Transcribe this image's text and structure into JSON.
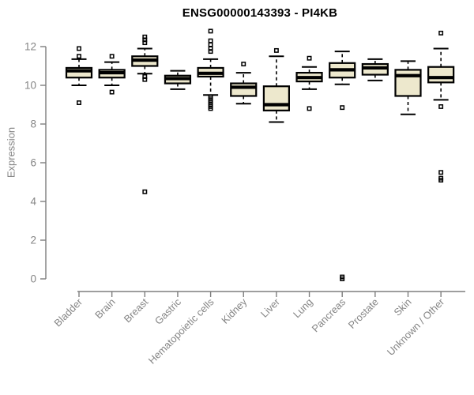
{
  "chart_data": {
    "type": "boxplot",
    "title": "ENSG00000143393 - PI4KB",
    "xlabel": "",
    "ylabel": "Expression",
    "ylim": [
      0,
      13.2
    ],
    "yticks": [
      0,
      2,
      4,
      6,
      8,
      10,
      12
    ],
    "grid": false,
    "legend": "none",
    "categories": [
      "Bladder",
      "Brain",
      "Breast",
      "Gastric",
      "Hematopoietic cells",
      "Kidney",
      "Liver",
      "Lung",
      "Pancreas",
      "Prostate",
      "Skin",
      "Unknown / Other"
    ],
    "series": [
      {
        "name": "Bladder",
        "whisker_low": 10.0,
        "q1": 10.4,
        "median": 10.75,
        "q3": 10.9,
        "whisker_high": 11.35,
        "outliers": [
          11.9,
          11.5,
          9.1
        ]
      },
      {
        "name": "Brain",
        "whisker_low": 10.0,
        "q1": 10.4,
        "median": 10.65,
        "q3": 10.8,
        "whisker_high": 11.2,
        "outliers": [
          11.5,
          9.65
        ]
      },
      {
        "name": "Breast",
        "whisker_low": 10.6,
        "q1": 11.0,
        "median": 11.3,
        "q3": 11.5,
        "whisker_high": 11.9,
        "outliers": [
          12.5,
          12.35,
          12.2,
          10.45,
          10.3,
          4.5
        ]
      },
      {
        "name": "Gastric",
        "whisker_low": 9.8,
        "q1": 10.1,
        "median": 10.35,
        "q3": 10.5,
        "whisker_high": 10.75,
        "outliers": []
      },
      {
        "name": "Hematopoietic cells",
        "whisker_low": 9.5,
        "q1": 10.45,
        "median": 10.62,
        "q3": 10.9,
        "whisker_high": 11.35,
        "outliers": [
          12.8,
          12.3,
          12.1,
          11.9,
          11.75,
          9.4,
          9.3,
          9.2,
          9.1,
          9.0,
          8.9,
          8.8
        ]
      },
      {
        "name": "Kidney",
        "whisker_low": 9.05,
        "q1": 9.45,
        "median": 9.9,
        "q3": 10.1,
        "whisker_high": 10.65,
        "outliers": [
          11.1
        ]
      },
      {
        "name": "Liver",
        "whisker_low": 8.1,
        "q1": 8.7,
        "median": 9.0,
        "q3": 9.95,
        "whisker_high": 11.5,
        "outliers": [
          11.8
        ]
      },
      {
        "name": "Lung",
        "whisker_low": 9.8,
        "q1": 10.2,
        "median": 10.4,
        "q3": 10.65,
        "whisker_high": 10.95,
        "outliers": [
          11.4,
          8.8
        ]
      },
      {
        "name": "Pancreas",
        "whisker_low": 10.05,
        "q1": 10.4,
        "median": 10.8,
        "q3": 11.15,
        "whisker_high": 11.75,
        "outliers": [
          8.85,
          0.1,
          0.0
        ]
      },
      {
        "name": "Prostate",
        "whisker_low": 10.25,
        "q1": 10.55,
        "median": 10.9,
        "q3": 11.1,
        "whisker_high": 11.35,
        "outliers": []
      },
      {
        "name": "Skin",
        "whisker_low": 8.5,
        "q1": 9.45,
        "median": 10.5,
        "q3": 10.8,
        "whisker_high": 11.25,
        "outliers": []
      },
      {
        "name": "Unknown / Other",
        "whisker_low": 9.25,
        "q1": 10.15,
        "median": 10.4,
        "q3": 10.95,
        "whisker_high": 11.9,
        "outliers": [
          12.7,
          8.9,
          5.5,
          5.2,
          5.1
        ]
      }
    ],
    "colors": {
      "box_fill": "#EDE8CD",
      "box_border": "#000000",
      "median": "#000000",
      "whisker": "#000000",
      "axis": "#7E7E7E",
      "tick_label": "#858585",
      "title": "#000000",
      "background": "#FFFFFF"
    }
  }
}
